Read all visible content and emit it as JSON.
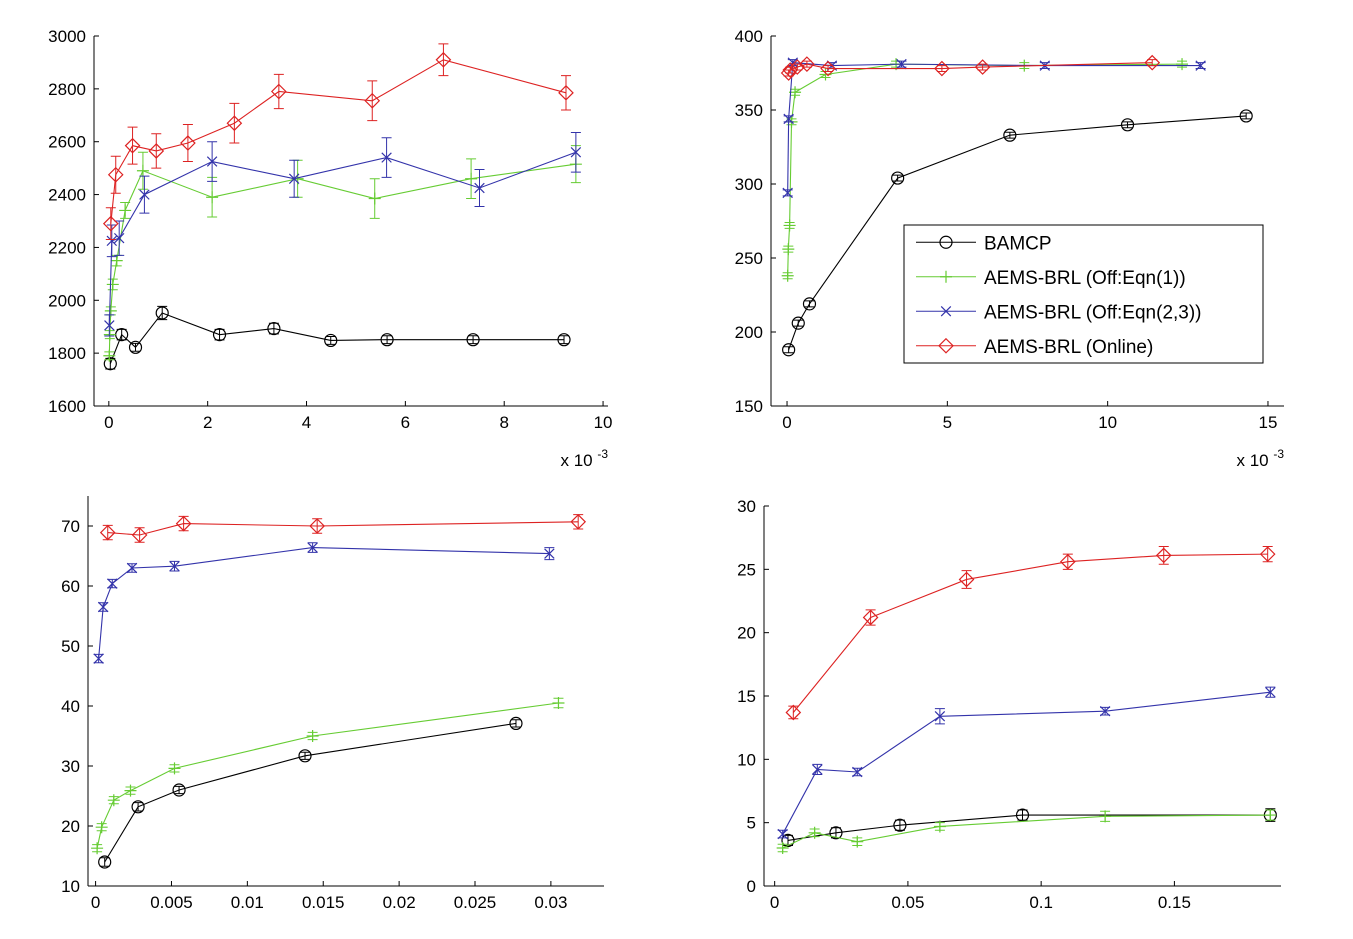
{
  "colors": {
    "BAMCP": "#000000",
    "AEMS-BRL (Off:Eqn(1))": "#66cc33",
    "AEMS-BRL (Off:Eqn(2,3))": "#3333aa",
    "AEMS-BRL (Online)": "#dd2222"
  },
  "chart_data": [
    {
      "type": "line",
      "xlim": [
        -0.0003,
        0.0101
      ],
      "ylim": [
        1600,
        3000
      ],
      "xticks": [
        0,
        0.002,
        0.004,
        0.006,
        0.008,
        0.01
      ],
      "xtick_labels": [
        "0",
        "2",
        "4",
        "6",
        "8",
        "10"
      ],
      "yticks": [
        1600,
        1800,
        2000,
        2200,
        2400,
        2600,
        2800,
        3000
      ],
      "ytick_labels": [
        "1600",
        "1800",
        "2000",
        "2200",
        "2400",
        "2600",
        "2800",
        "3000"
      ],
      "x_multiplier_label": {
        "base": "x 10",
        "exponent": "-3"
      },
      "legend": null,
      "grid": false,
      "series": [
        {
          "name": "BAMCP",
          "marker": "circle",
          "x": [
            3e-05,
            0.00026,
            0.00054,
            0.00108,
            0.00224,
            0.00334,
            0.00449,
            0.00563,
            0.00737,
            0.00921
          ],
          "y": [
            1760,
            1870,
            1822,
            1952,
            1870,
            1893,
            1848,
            1851,
            1851,
            1851
          ],
          "err": [
            20,
            20,
            15,
            25,
            20,
            20,
            15,
            15,
            15,
            15
          ]
        },
        {
          "name": "AEMS-BRL (Off:Eqn(1))",
          "marker": "plus",
          "x": [
            1e-05,
            2e-05,
            4e-05,
            8e-05,
            0.00016,
            0.00033,
            0.00069,
            0.00209,
            0.00382,
            0.00538,
            0.00733,
            0.00945
          ],
          "y": [
            1790,
            1870,
            1960,
            2060,
            2150,
            2340,
            2490,
            2390,
            2460,
            2385,
            2460,
            2515
          ],
          "err": [
            15,
            15,
            15,
            20,
            20,
            30,
            70,
            75,
            70,
            75,
            75,
            70
          ]
        },
        {
          "name": "AEMS-BRL (Off:Eqn(2,3))",
          "marker": "x",
          "x": [
            1e-05,
            6e-05,
            0.00021,
            0.00072,
            0.00209,
            0.00375,
            0.00562,
            0.0075,
            0.00945
          ],
          "y": [
            1905,
            2225,
            2235,
            2400,
            2525,
            2460,
            2540,
            2425,
            2560
          ],
          "err": [
            40,
            60,
            65,
            70,
            75,
            70,
            75,
            70,
            75
          ]
        },
        {
          "name": "AEMS-BRL (Online)",
          "marker": "diamond",
          "x": [
            4e-05,
            0.00014,
            0.00048,
            0.00096,
            0.0016,
            0.00254,
            0.00344,
            0.00533,
            0.00677,
            0.00925
          ],
          "y": [
            2290,
            2475,
            2585,
            2565,
            2595,
            2670,
            2790,
            2755,
            2910,
            2785
          ],
          "err": [
            60,
            70,
            70,
            65,
            70,
            75,
            65,
            75,
            60,
            65
          ]
        }
      ]
    },
    {
      "type": "line",
      "xlim": [
        -0.0005,
        0.0155
      ],
      "ylim": [
        150,
        400
      ],
      "xticks": [
        0,
        0.005,
        0.01,
        0.015
      ],
      "xtick_labels": [
        "0",
        "5",
        "10",
        "15"
      ],
      "yticks": [
        150,
        200,
        250,
        300,
        350,
        400
      ],
      "ytick_labels": [
        "150",
        "200",
        "250",
        "300",
        "350",
        "400"
      ],
      "x_multiplier_label": {
        "base": "x 10",
        "exponent": "-3"
      },
      "legend": {
        "placement": "inside-right",
        "entries": [
          "BAMCP",
          "AEMS-BRL (Off:Eqn(1))",
          "AEMS-BRL (Off:Eqn(2,3))",
          "AEMS-BRL (Online)"
        ]
      },
      "grid": false,
      "series": [
        {
          "name": "BAMCP",
          "marker": "circle",
          "x": [
            5e-05,
            0.00035,
            0.0007,
            0.00345,
            0.00695,
            0.01062,
            0.01432
          ],
          "y": [
            188,
            206,
            219,
            304,
            333,
            340,
            346
          ],
          "err": [
            2,
            2,
            2,
            2,
            2,
            2,
            2
          ]
        },
        {
          "name": "AEMS-BRL (Off:Eqn(1))",
          "marker": "plus",
          "x": [
            2e-05,
            4e-05,
            8e-05,
            0.00014,
            0.00025,
            0.0012,
            0.0034,
            0.0074,
            0.01232
          ],
          "y": [
            238,
            256,
            272,
            342,
            362,
            374,
            381,
            380,
            381
          ],
          "err": [
            2,
            2,
            2,
            2,
            2,
            2,
            2,
            2,
            2
          ]
        },
        {
          "name": "AEMS-BRL (Off:Eqn(2,3))",
          "marker": "x",
          "x": [
            2e-05,
            5e-05,
            0.00018,
            0.0014,
            0.00357,
            0.00804,
            0.0129
          ],
          "y": [
            294,
            344,
            382,
            380,
            381,
            380,
            380
          ],
          "err": [
            2,
            2,
            2,
            2,
            2,
            2,
            2
          ]
        },
        {
          "name": "AEMS-BRL (Online)",
          "marker": "diamond",
          "x": [
            5e-05,
            0.0001,
            0.00032,
            0.00062,
            0.00128,
            0.00483,
            0.0061,
            0.01139
          ],
          "y": [
            375,
            377,
            379,
            381,
            378,
            378,
            379,
            382
          ],
          "err": [
            2,
            2,
            2,
            2,
            2,
            2,
            2,
            2
          ]
        }
      ]
    },
    {
      "type": "line",
      "xlim": [
        -0.0005,
        0.0335
      ],
      "ylim": [
        10,
        75
      ],
      "xticks": [
        0,
        0.005,
        0.01,
        0.015,
        0.02,
        0.025,
        0.03
      ],
      "xtick_labels": [
        "0",
        "0.005",
        "0.01",
        "0.015",
        "0.02",
        "0.025",
        "0.03"
      ],
      "yticks": [
        10,
        20,
        30,
        40,
        50,
        60,
        70
      ],
      "ytick_labels": [
        "10",
        "20",
        "30",
        "40",
        "50",
        "60",
        "70"
      ],
      "x_multiplier_label": null,
      "legend": null,
      "grid": false,
      "series": [
        {
          "name": "BAMCP",
          "marker": "circle",
          "x": [
            0.0006,
            0.0028,
            0.0055,
            0.0138,
            0.0277
          ],
          "y": [
            14,
            23.2,
            26,
            31.7,
            37.1
          ],
          "err": [
            0.7,
            0.7,
            0.6,
            0.6,
            0.6
          ]
        },
        {
          "name": "AEMS-BRL (Off:Eqn(1))",
          "marker": "plus",
          "x": [
            0.0001,
            0.0004,
            0.0012,
            0.0023,
            0.0052,
            0.0143,
            0.0305
          ],
          "y": [
            16.3,
            19.8,
            24.3,
            25.9,
            29.6,
            35,
            40.5
          ],
          "err": [
            0.6,
            0.6,
            0.6,
            0.6,
            0.6,
            0.6,
            0.8
          ]
        },
        {
          "name": "AEMS-BRL (Off:Eqn(2,3))",
          "marker": "x",
          "x": [
            0.0002,
            0.0005,
            0.0011,
            0.0024,
            0.0052,
            0.0143,
            0.0299
          ],
          "y": [
            47.9,
            56.5,
            60.4,
            63,
            63.3,
            66.4,
            65.4
          ],
          "err": [
            0.7,
            0.7,
            0.7,
            0.7,
            0.8,
            0.8,
            1
          ]
        },
        {
          "name": "AEMS-BRL (Online)",
          "marker": "diamond",
          "x": [
            0.0008,
            0.0029,
            0.0058,
            0.0146,
            0.0318
          ],
          "y": [
            68.9,
            68.5,
            70.4,
            70,
            70.7
          ],
          "err": [
            1.2,
            1.2,
            1.2,
            1.2,
            1.2
          ]
        }
      ]
    },
    {
      "type": "line",
      "xlim": [
        -0.004,
        0.19
      ],
      "ylim": [
        0,
        30
      ],
      "xticks": [
        0,
        0.05,
        0.1,
        0.15
      ],
      "xtick_labels": [
        "0",
        "0.05",
        "0.1",
        "0.15"
      ],
      "yticks": [
        0,
        5,
        10,
        15,
        20,
        25,
        30
      ],
      "ytick_labels": [
        "0",
        "5",
        "10",
        "15",
        "20",
        "25",
        "30"
      ],
      "x_multiplier_label": null,
      "legend": null,
      "grid": false,
      "series": [
        {
          "name": "BAMCP",
          "marker": "circle",
          "x": [
            0.005,
            0.023,
            0.047,
            0.093,
            0.186
          ],
          "y": [
            3.6,
            4.2,
            4.8,
            5.6,
            5.6
          ],
          "err": [
            0.4,
            0.4,
            0.4,
            0.4,
            0.5
          ]
        },
        {
          "name": "AEMS-BRL (Off:Eqn(1))",
          "marker": "plus",
          "x": [
            0.003,
            0.015,
            0.031,
            0.062,
            0.124,
            0.186
          ],
          "y": [
            3,
            4.2,
            3.5,
            4.7,
            5.5,
            5.6
          ],
          "err": [
            0.3,
            0.3,
            0.3,
            0.3,
            0.4,
            0.4
          ]
        },
        {
          "name": "AEMS-BRL (Off:Eqn(2,3))",
          "marker": "x",
          "x": [
            0.003,
            0.016,
            0.031,
            0.062,
            0.124,
            0.186
          ],
          "y": [
            4.1,
            9.2,
            9,
            13.4,
            13.8,
            15.3
          ],
          "err": [
            0.3,
            0.4,
            0.3,
            0.6,
            0.3,
            0.4
          ]
        },
        {
          "name": "AEMS-BRL (Online)",
          "marker": "diamond",
          "x": [
            0.007,
            0.036,
            0.072,
            0.11,
            0.146,
            0.185
          ],
          "y": [
            13.7,
            21.2,
            24.2,
            25.6,
            26.1,
            26.2
          ],
          "err": [
            0.5,
            0.6,
            0.7,
            0.6,
            0.7,
            0.6
          ]
        }
      ]
    }
  ]
}
